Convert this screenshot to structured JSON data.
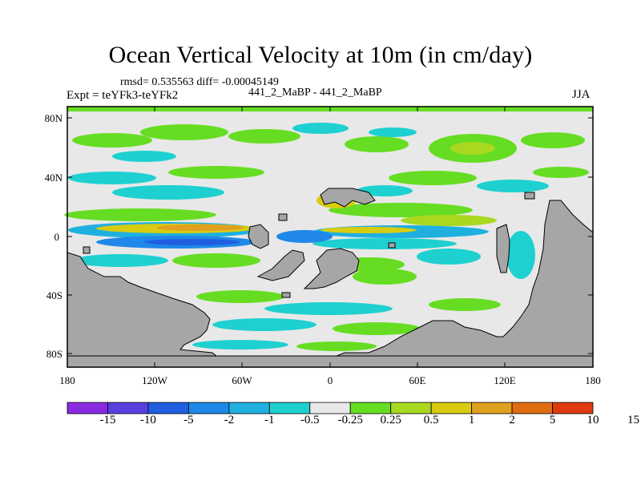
{
  "title": "Ocean Vertical Velocity at 10m (in cm/day)",
  "stats_line": "rmsd= 0.535563 diff= -0.00045149",
  "expt_line": "Expt = teYFk3-teYFk2",
  "center_line": "441_2_MaBP - 441_2_MaBP",
  "season": "JJA",
  "colors": {
    "land": "#a6a6a6",
    "neutral": "#e8e8e8",
    "frame": "#000000"
  },
  "map_data": {
    "lat_ticks": [
      "80N",
      "40N",
      "0",
      "40S",
      "80S"
    ],
    "lon_ticks": [
      "180",
      "120W",
      "60W",
      "0",
      "60E",
      "120E",
      "180"
    ]
  },
  "colorbar": {
    "colors": [
      "#8a2be2",
      "#5a3fe0",
      "#1f5fe0",
      "#1f88e8",
      "#1fb0e0",
      "#1fd0d0",
      "#e8e8e8",
      "#66dd22",
      "#a8d820",
      "#d8cc10",
      "#e0a020",
      "#e06d10",
      "#e03a10"
    ],
    "labels": [
      "-15",
      "-10",
      "-5",
      "-2",
      "-1",
      "-0.5",
      "-0.25",
      "0.25",
      "0.5",
      "1",
      "2",
      "5",
      "10",
      "15"
    ]
  }
}
